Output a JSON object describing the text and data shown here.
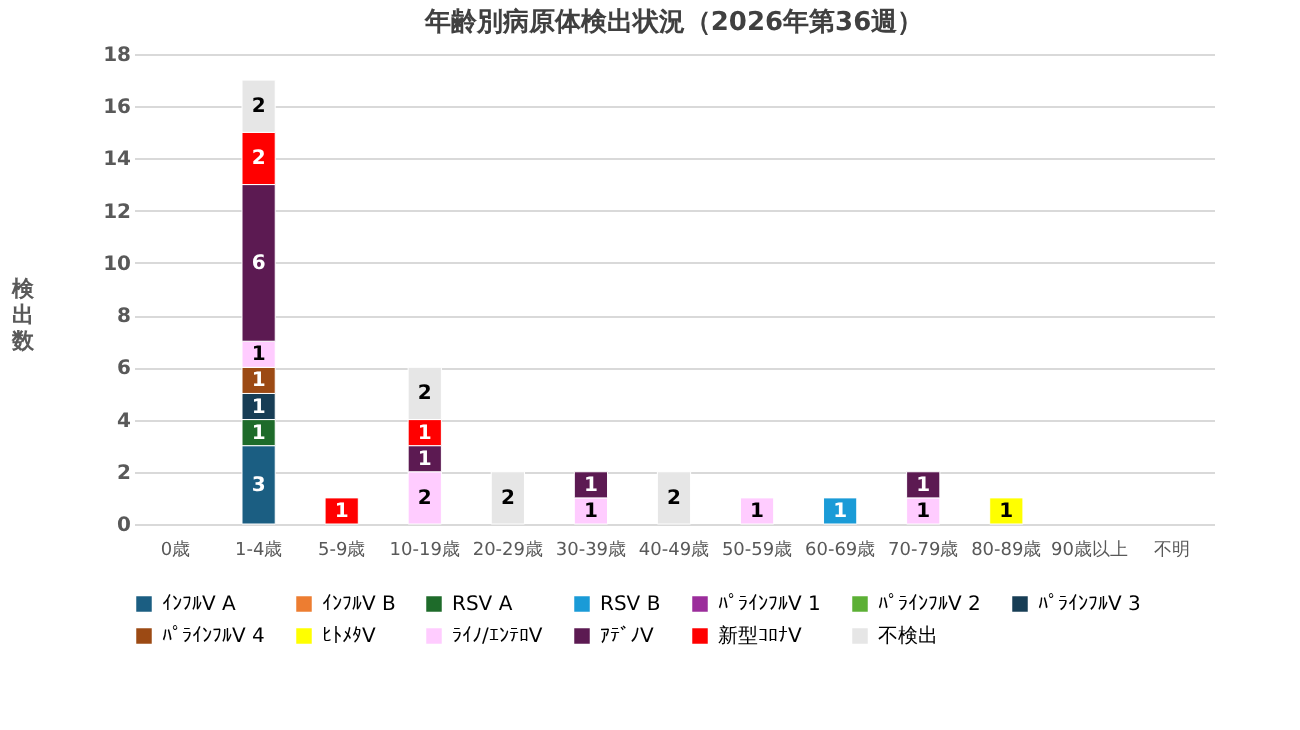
{
  "chart_data": {
    "type": "bar",
    "title": "年齢別病原体検出状況（2026年第36週）",
    "ylabel": "検出数",
    "categories": [
      "0歳",
      "1-4歳",
      "5-9歳",
      "10-19歳",
      "20-29歳",
      "30-39歳",
      "40-49歳",
      "50-59歳",
      "60-69歳",
      "70-79歳",
      "80-89歳",
      "90歳以上",
      "不明"
    ],
    "stacked": true,
    "ylim": [
      0,
      18
    ],
    "yticks": [
      0,
      2,
      4,
      6,
      8,
      10,
      12,
      14,
      16,
      18
    ],
    "grid": "y",
    "legend": "bottom",
    "data_labels": true,
    "series": [
      {
        "name": "ｲﾝﾌﾙV A",
        "color": "#1b5e82",
        "values": [
          null,
          3,
          null,
          null,
          null,
          null,
          null,
          null,
          null,
          null,
          null,
          null,
          null
        ]
      },
      {
        "name": "ｲﾝﾌﾙV B",
        "color": "#ed7d31",
        "values": [
          null,
          null,
          null,
          null,
          null,
          null,
          null,
          null,
          null,
          null,
          null,
          null,
          null
        ]
      },
      {
        "name": "RSV A",
        "color": "#1e6b2a",
        "values": [
          null,
          1,
          null,
          null,
          null,
          null,
          null,
          null,
          null,
          null,
          null,
          null,
          null
        ]
      },
      {
        "name": "RSV B",
        "color": "#1a9bd7",
        "values": [
          null,
          null,
          null,
          null,
          null,
          null,
          null,
          null,
          1,
          null,
          null,
          null,
          null
        ]
      },
      {
        "name": "ﾊﾟﾗｲﾝﾌﾙV 1",
        "color": "#9b2d9b",
        "values": [
          null,
          null,
          null,
          null,
          null,
          null,
          null,
          null,
          null,
          null,
          null,
          null,
          null
        ]
      },
      {
        "name": "ﾊﾟﾗｲﾝﾌﾙV 2",
        "color": "#5cb035",
        "values": [
          null,
          null,
          null,
          null,
          null,
          null,
          null,
          null,
          null,
          null,
          null,
          null,
          null
        ]
      },
      {
        "name": "ﾊﾟﾗｲﾝﾌﾙV 3",
        "color": "#173d55",
        "values": [
          null,
          1,
          null,
          null,
          null,
          null,
          null,
          null,
          null,
          null,
          null,
          null,
          null
        ]
      },
      {
        "name": "ﾊﾟﾗｲﾝﾌﾙV 4",
        "color": "#9c4a14",
        "values": [
          null,
          1,
          null,
          null,
          null,
          null,
          null,
          null,
          null,
          null,
          null,
          null,
          null
        ]
      },
      {
        "name": "ﾋﾄﾒﾀV",
        "color": "#ffff00",
        "values": [
          null,
          null,
          null,
          null,
          null,
          null,
          null,
          null,
          null,
          null,
          1,
          null,
          null
        ]
      },
      {
        "name": "ﾗｲﾉ/ｴﾝﾃﾛV",
        "color": "#ffccff",
        "values": [
          null,
          1,
          null,
          2,
          null,
          1,
          null,
          1,
          null,
          1,
          null,
          null,
          null
        ]
      },
      {
        "name": "ｱﾃﾞﾉV",
        "color": "#5c1a52",
        "values": [
          null,
          6,
          null,
          1,
          null,
          1,
          null,
          null,
          null,
          1,
          null,
          null,
          null
        ]
      },
      {
        "name": "新型ｺﾛﾅV",
        "color": "#ff0000",
        "values": [
          null,
          2,
          1,
          1,
          null,
          null,
          null,
          null,
          null,
          null,
          null,
          null,
          null
        ]
      },
      {
        "name": "不検出",
        "color": "#e6e6e6",
        "values": [
          null,
          2,
          null,
          2,
          2,
          null,
          2,
          null,
          null,
          null,
          null,
          null,
          null
        ]
      }
    ]
  }
}
